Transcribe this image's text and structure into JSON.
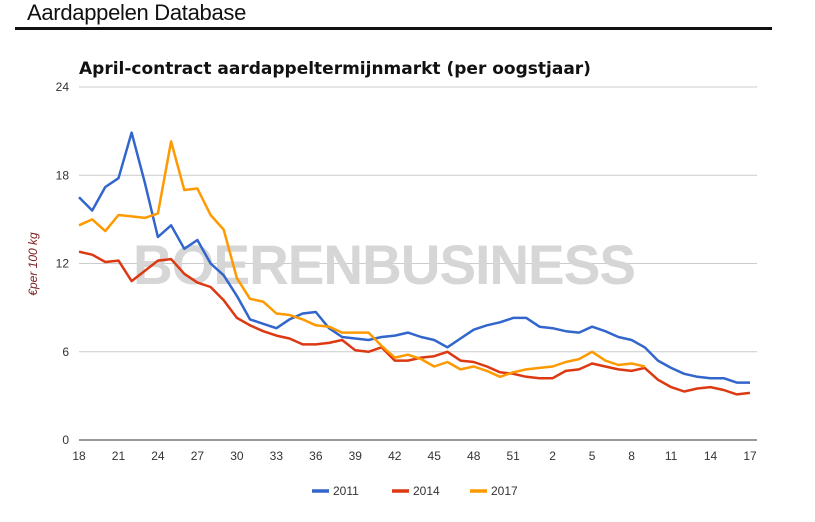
{
  "header": {
    "title": "Aardappelen Database"
  },
  "watermark": "BOERENBUSINESS",
  "chart_data": {
    "type": "line",
    "title": "April-contract aardappeltermijnmarkt (per oogstjaar)",
    "xlabel": "",
    "ylabel": "€per 100 kg",
    "ylim": [
      0,
      24
    ],
    "yticks": [
      "0",
      "6",
      "12",
      "18",
      "24"
    ],
    "ytick_values": [
      0,
      6,
      12,
      18,
      24
    ],
    "x": [
      "18",
      "19",
      "20",
      "21",
      "22",
      "23",
      "24",
      "25",
      "26",
      "27",
      "28",
      "29",
      "30",
      "31",
      "32",
      "33",
      "34",
      "35",
      "36",
      "37",
      "38",
      "39",
      "40",
      "41",
      "42",
      "43",
      "44",
      "45",
      "46",
      "47",
      "48",
      "49",
      "50",
      "51",
      "52",
      "1",
      "2",
      "3",
      "4",
      "5",
      "6",
      "7",
      "8",
      "9",
      "10",
      "11",
      "12",
      "13",
      "14",
      "15",
      "16",
      "17"
    ],
    "xticks": [
      "18",
      "21",
      "24",
      "27",
      "30",
      "33",
      "36",
      "39",
      "42",
      "45",
      "48",
      "51",
      "2",
      "5",
      "8",
      "11",
      "14",
      "17"
    ],
    "grid": true,
    "legend": "bottom",
    "series": [
      {
        "name": "2011",
        "color": "#3366cc",
        "values": [
          16.5,
          15.6,
          17.2,
          17.8,
          20.9,
          17.5,
          13.8,
          14.6,
          13.0,
          13.6,
          12.0,
          11.2,
          9.8,
          8.2,
          7.9,
          7.6,
          8.2,
          8.6,
          8.7,
          7.6,
          7.0,
          6.9,
          6.8,
          7.0,
          7.1,
          7.3,
          7.0,
          6.8,
          6.3,
          6.9,
          7.5,
          7.8,
          8.0,
          8.3,
          8.3,
          7.7,
          7.6,
          7.4,
          7.3,
          7.7,
          7.4,
          7.0,
          6.8,
          6.3,
          5.4,
          4.9,
          4.5,
          4.3,
          4.2,
          4.2,
          3.9,
          3.9
        ]
      },
      {
        "name": "2014",
        "color": "#dc3912",
        "values": [
          12.8,
          12.6,
          12.1,
          12.2,
          10.8,
          11.5,
          12.2,
          12.3,
          11.3,
          10.7,
          10.4,
          9.5,
          8.3,
          7.8,
          7.4,
          7.1,
          6.9,
          6.5,
          6.5,
          6.6,
          6.8,
          6.1,
          6.0,
          6.3,
          5.4,
          5.4,
          5.6,
          5.7,
          6.0,
          5.4,
          5.3,
          5.0,
          4.6,
          4.5,
          4.3,
          4.2,
          4.2,
          4.7,
          4.8,
          5.2,
          5.0,
          4.8,
          4.7,
          4.9,
          4.1,
          3.6,
          3.3,
          3.5,
          3.6,
          3.4,
          3.1,
          3.2
        ]
      },
      {
        "name": "2017",
        "color": "#ff9900",
        "values": [
          14.6,
          15.0,
          14.2,
          15.3,
          15.2,
          15.1,
          15.4,
          20.3,
          17.0,
          17.1,
          15.3,
          14.3,
          11.0,
          9.6,
          9.4,
          8.6,
          8.5,
          8.2,
          7.8,
          7.7,
          7.3,
          7.3,
          7.3,
          6.4,
          5.6,
          5.8,
          5.5,
          5.0,
          5.3,
          4.8,
          5.0,
          4.7,
          4.3,
          4.6,
          4.8,
          4.9,
          5.0,
          5.3,
          5.5,
          6.0,
          5.4,
          5.1,
          5.2,
          5.0,
          null,
          null,
          null,
          null,
          null,
          null,
          null,
          null
        ]
      }
    ]
  }
}
